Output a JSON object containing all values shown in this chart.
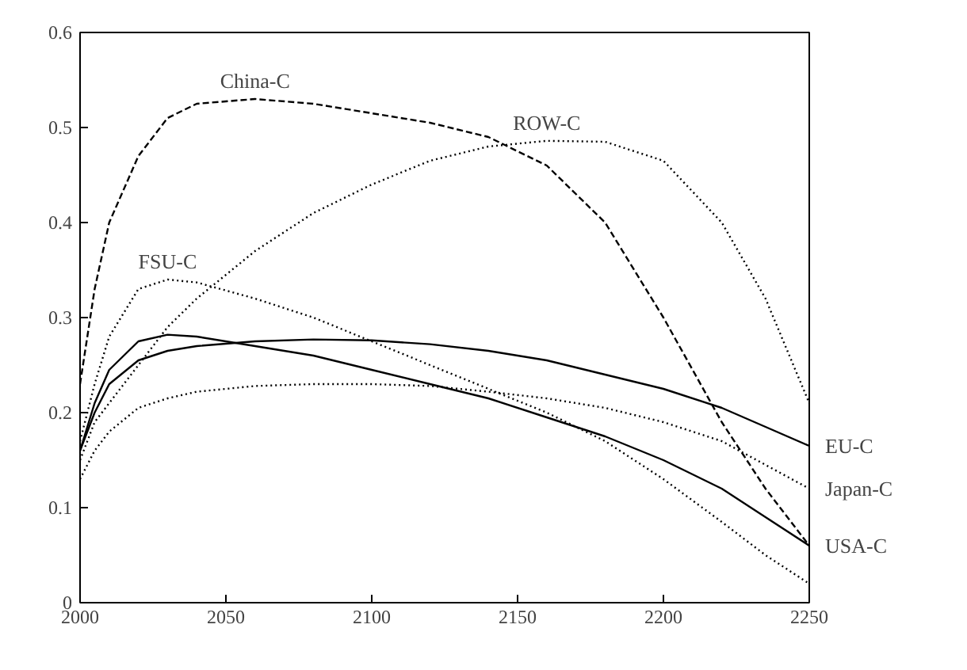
{
  "chart_data": {
    "type": "line",
    "x": [
      2000,
      2005,
      2010,
      2020,
      2030,
      2040,
      2060,
      2080,
      2100,
      2120,
      2140,
      2160,
      2180,
      2200,
      2220,
      2235,
      2250
    ],
    "series": [
      {
        "name": "China-C",
        "color": "#000000",
        "line_style": "dashed",
        "values": [
          0.23,
          0.33,
          0.4,
          0.47,
          0.51,
          0.525,
          0.53,
          0.525,
          0.515,
          0.505,
          0.49,
          0.46,
          0.4,
          0.3,
          0.19,
          0.12,
          0.06
        ]
      },
      {
        "name": "ROW-C",
        "color": "#000000",
        "line_style": "dotted",
        "values": [
          0.15,
          0.19,
          0.21,
          0.25,
          0.29,
          0.32,
          0.37,
          0.41,
          0.44,
          0.465,
          0.48,
          0.486,
          0.485,
          0.465,
          0.4,
          0.32,
          0.21
        ]
      },
      {
        "name": "FSU-C",
        "color": "#000000",
        "line_style": "dotted",
        "values": [
          0.17,
          0.23,
          0.28,
          0.33,
          0.34,
          0.337,
          0.32,
          0.3,
          0.275,
          0.25,
          0.225,
          0.2,
          0.17,
          0.13,
          0.085,
          0.05,
          0.02
        ]
      },
      {
        "name": "EU-C",
        "color": "#000000",
        "line_style": "solid",
        "values": [
          0.16,
          0.2,
          0.23,
          0.255,
          0.265,
          0.27,
          0.275,
          0.277,
          0.276,
          0.272,
          0.265,
          0.255,
          0.24,
          0.225,
          0.205,
          0.185,
          0.165
        ]
      },
      {
        "name": "Japan-C",
        "color": "#000000",
        "line_style": "dotted",
        "values": [
          0.13,
          0.16,
          0.18,
          0.205,
          0.215,
          0.222,
          0.228,
          0.23,
          0.23,
          0.228,
          0.222,
          0.215,
          0.205,
          0.19,
          0.17,
          0.145,
          0.12
        ]
      },
      {
        "name": "USA-C",
        "color": "#000000",
        "line_style": "solid",
        "values": [
          0.16,
          0.21,
          0.245,
          0.275,
          0.282,
          0.28,
          0.27,
          0.26,
          0.245,
          0.23,
          0.215,
          0.195,
          0.175,
          0.15,
          0.12,
          0.09,
          0.06
        ]
      }
    ],
    "xlim": [
      2000,
      2250
    ],
    "xticks": [
      2000,
      2050,
      2100,
      2150,
      2200,
      2250
    ],
    "ylim": [
      0,
      0.6
    ],
    "yticks": [
      0,
      0.1,
      0.2,
      0.3,
      0.4,
      0.5,
      0.6
    ],
    "grid": false,
    "marker": "none"
  }
}
